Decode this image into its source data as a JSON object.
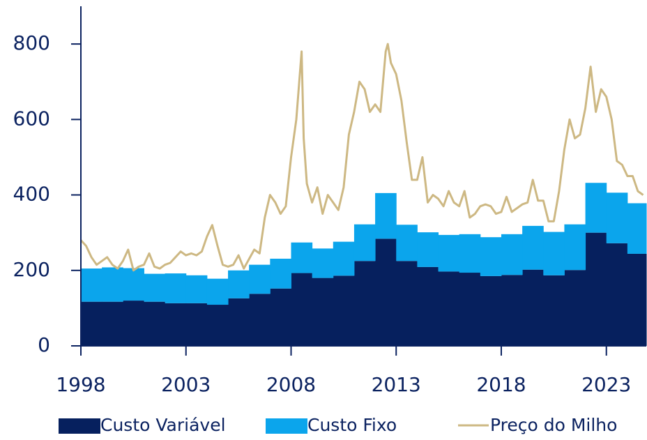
{
  "chart_data": {
    "type": "stacked-step-area-line",
    "categories": [
      1998,
      1999,
      2000,
      2001,
      2002,
      2003,
      2004,
      2005,
      2006,
      2007,
      2008,
      2009,
      2010,
      2011,
      2012,
      2013,
      2014,
      2015,
      2016,
      2017,
      2018,
      2019,
      2020,
      2021,
      2022,
      2023,
      2024
    ],
    "series": [
      {
        "name": "Custo Variável",
        "color": "#06205e",
        "values": [
          117,
          117,
          120,
          117,
          113,
          113,
          109,
          126,
          138,
          152,
          193,
          180,
          186,
          225,
          284,
          225,
          209,
          197,
          194,
          185,
          188,
          202,
          187,
          201,
          300,
          272,
          244
        ]
      },
      {
        "name": "Custo Fixo",
        "color": "#0ba5ec",
        "values": [
          88,
          91,
          86,
          74,
          79,
          74,
          69,
          74,
          77,
          79,
          81,
          78,
          90,
          97,
          121,
          96,
          92,
          97,
          102,
          103,
          108,
          116,
          115,
          121,
          132,
          134,
          134
        ]
      },
      {
        "name": "Preço do Milho",
        "color": "#cdb883",
        "type": "line",
        "x": [
          1998,
          1998.25,
          1998.5,
          1998.75,
          1999,
          1999.25,
          1999.5,
          1999.75,
          2000,
          2000.25,
          2000.5,
          2000.75,
          2001,
          2001.25,
          2001.5,
          2001.75,
          2002,
          2002.25,
          2002.5,
          2002.75,
          2003,
          2003.25,
          2003.5,
          2003.75,
          2004,
          2004.25,
          2004.5,
          2004.75,
          2005,
          2005.25,
          2005.5,
          2005.75,
          2006,
          2006.25,
          2006.5,
          2006.75,
          2007,
          2007.25,
          2007.5,
          2007.75,
          2008,
          2008.25,
          2008.5,
          2008.6,
          2008.75,
          2009,
          2009.25,
          2009.5,
          2009.75,
          2010,
          2010.25,
          2010.5,
          2010.75,
          2011,
          2011.25,
          2011.5,
          2011.75,
          2012,
          2012.25,
          2012.5,
          2012.6,
          2012.75,
          2013,
          2013.25,
          2013.5,
          2013.75,
          2014,
          2014.25,
          2014.5,
          2014.75,
          2015,
          2015.25,
          2015.5,
          2015.75,
          2016,
          2016.25,
          2016.5,
          2016.75,
          2017,
          2017.25,
          2017.5,
          2017.75,
          2018,
          2018.25,
          2018.5,
          2018.75,
          2019,
          2019.25,
          2019.5,
          2019.75,
          2020,
          2020.25,
          2020.5,
          2020.75,
          2021,
          2021.25,
          2021.5,
          2021.75,
          2022,
          2022.25,
          2022.5,
          2022.75,
          2023,
          2023.25,
          2023.5,
          2023.75,
          2024,
          2024.25,
          2024.5,
          2024.75
        ],
        "values": [
          280,
          265,
          235,
          215,
          225,
          235,
          215,
          205,
          225,
          255,
          200,
          210,
          215,
          245,
          210,
          205,
          215,
          220,
          235,
          250,
          240,
          245,
          240,
          250,
          290,
          320,
          265,
          215,
          210,
          215,
          240,
          205,
          230,
          255,
          245,
          340,
          400,
          380,
          350,
          370,
          500,
          600,
          780,
          550,
          430,
          380,
          420,
          350,
          400,
          380,
          360,
          420,
          560,
          620,
          700,
          680,
          620,
          640,
          620,
          780,
          800,
          750,
          720,
          650,
          540,
          440,
          440,
          500,
          380,
          400,
          390,
          370,
          410,
          380,
          370,
          410,
          340,
          350,
          370,
          375,
          370,
          350,
          355,
          395,
          355,
          365,
          375,
          380,
          440,
          385,
          385,
          330,
          330,
          410,
          520,
          600,
          550,
          560,
          630,
          740,
          620,
          680,
          660,
          600,
          490,
          480,
          450,
          450,
          410,
          400
        ]
      }
    ],
    "xlim": [
      1998,
      2024.9
    ],
    "xticks": [
      1998,
      2003,
      2008,
      2013,
      2018,
      2023
    ],
    "ylim": [
      0,
      900
    ],
    "yticks": [
      0,
      200,
      400,
      600,
      800
    ],
    "legend": "bottom"
  }
}
